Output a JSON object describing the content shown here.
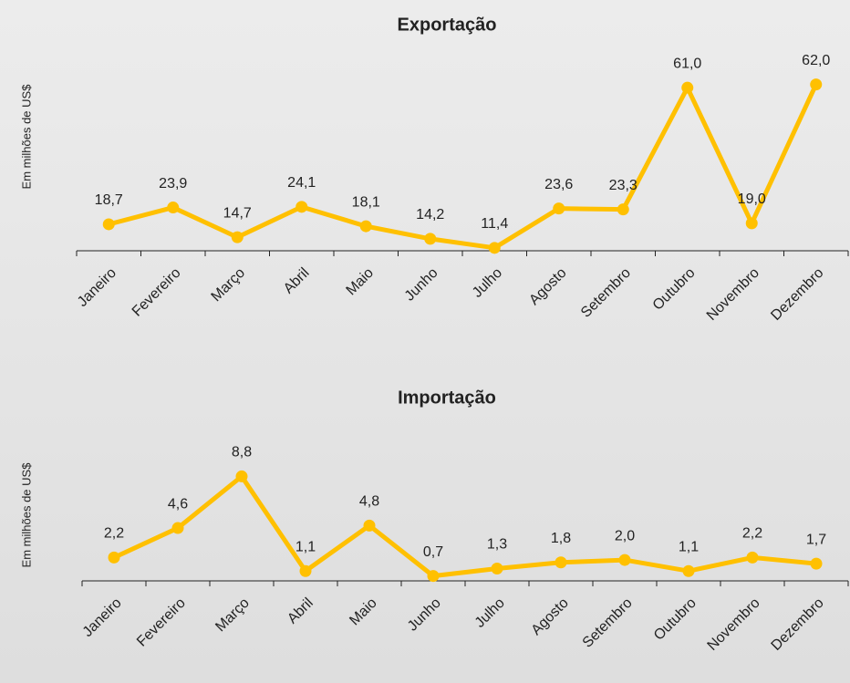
{
  "chart_data": [
    {
      "type": "line",
      "title": "Exportação",
      "y_label": "Em milhões de US$",
      "categories": [
        "Janeiro",
        "Fevereiro",
        "Março",
        "Abril",
        "Maio",
        "Junho",
        "Julho",
        "Agosto",
        "Setembro",
        "Outubro",
        "Novembro",
        "Dezembro"
      ],
      "series": [
        {
          "name": "Exportação",
          "color": "#ffc000",
          "values": [
            18.7,
            23.9,
            14.7,
            24.1,
            18.1,
            14.2,
            11.4,
            23.6,
            23.3,
            61.0,
            19.0,
            62.0
          ],
          "value_labels": [
            "18,7",
            "23,9",
            "14,7",
            "24,1",
            "18,1",
            "14,2",
            "11,4",
            "23,6",
            "23,3",
            "61,0",
            "19,0",
            "62,0"
          ]
        }
      ],
      "ylim": [
        10.5,
        65
      ]
    },
    {
      "type": "line",
      "title": "Importação",
      "y_label": "Em milhões de US$",
      "categories": [
        "Janeiro",
        "Fevereiro",
        "Março",
        "Abril",
        "Maio",
        "Junho",
        "Julho",
        "Agosto",
        "Setembro",
        "Outubro",
        "Novembro",
        "Dezembro"
      ],
      "series": [
        {
          "name": "Importação",
          "color": "#ffc000",
          "values": [
            2.2,
            4.6,
            8.8,
            1.1,
            4.8,
            0.7,
            1.3,
            1.8,
            2.0,
            1.1,
            2.2,
            1.7
          ],
          "value_labels": [
            "2,2",
            "4,6",
            "8,8",
            "1,1",
            "4,8",
            "0,7",
            "1,3",
            "1,8",
            "2,0",
            "1,1",
            "2,2",
            "1,7"
          ]
        }
      ],
      "ylim": [
        0.3,
        9.5
      ]
    }
  ]
}
